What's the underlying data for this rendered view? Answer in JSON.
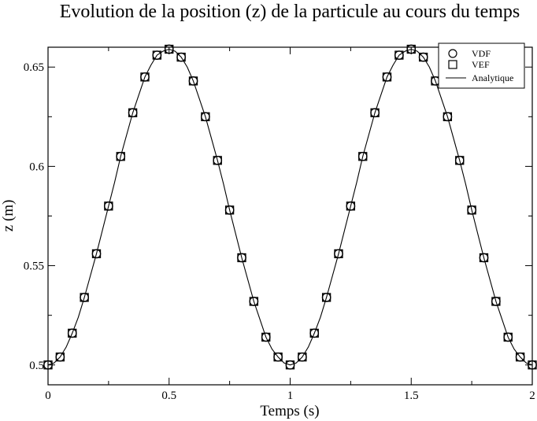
{
  "chart_data": {
    "type": "line",
    "title": "Evolution de la position (z) de la particule au cours du temps",
    "xlabel": "Temps (s)",
    "ylabel": "z (m)",
    "xlim": [
      0,
      2
    ],
    "ylim": [
      0.49,
      0.66
    ],
    "xticks": [
      0,
      0.5,
      1,
      1.5,
      2
    ],
    "xtick_labels": [
      "0",
      "0.5",
      "1",
      "1.5",
      "2"
    ],
    "yticks": [
      0.5,
      0.55,
      0.6,
      0.65
    ],
    "ytick_labels": [
      "0.5",
      "0.55",
      "0.6",
      "0.65"
    ],
    "grid": false,
    "legend_position": "top-right",
    "series": [
      {
        "name": "VDF",
        "marker": "circle",
        "x": [
          0,
          0.05,
          0.1,
          0.15,
          0.2,
          0.25,
          0.3,
          0.35,
          0.4,
          0.45,
          0.5,
          0.55,
          0.6,
          0.65,
          0.7,
          0.75,
          0.8,
          0.85,
          0.9,
          0.95,
          1,
          1.05,
          1.1,
          1.15,
          1.2,
          1.25,
          1.3,
          1.35,
          1.4,
          1.45,
          1.5,
          1.55,
          1.6,
          1.65,
          1.7,
          1.75,
          1.8,
          1.85,
          1.9,
          1.95,
          2
        ],
        "y": [
          0.5,
          0.504,
          0.516,
          0.534,
          0.556,
          0.58,
          0.605,
          0.627,
          0.645,
          0.656,
          0.659,
          0.655,
          0.643,
          0.625,
          0.603,
          0.578,
          0.554,
          0.532,
          0.514,
          0.504,
          0.5,
          0.504,
          0.516,
          0.534,
          0.556,
          0.58,
          0.605,
          0.627,
          0.645,
          0.656,
          0.659,
          0.655,
          0.643,
          0.625,
          0.603,
          0.578,
          0.554,
          0.532,
          0.514,
          0.504,
          0.5
        ]
      },
      {
        "name": "VEF",
        "marker": "square",
        "x": [
          0,
          0.05,
          0.1,
          0.15,
          0.2,
          0.25,
          0.3,
          0.35,
          0.4,
          0.45,
          0.5,
          0.55,
          0.6,
          0.65,
          0.7,
          0.75,
          0.8,
          0.85,
          0.9,
          0.95,
          1,
          1.05,
          1.1,
          1.15,
          1.2,
          1.25,
          1.3,
          1.35,
          1.4,
          1.45,
          1.5,
          1.55,
          1.6,
          1.65,
          1.7,
          1.75,
          1.8,
          1.85,
          1.9,
          1.95,
          2
        ],
        "y": [
          0.5,
          0.504,
          0.516,
          0.534,
          0.556,
          0.58,
          0.605,
          0.627,
          0.645,
          0.656,
          0.659,
          0.655,
          0.643,
          0.625,
          0.603,
          0.578,
          0.554,
          0.532,
          0.514,
          0.504,
          0.5,
          0.504,
          0.516,
          0.534,
          0.556,
          0.58,
          0.605,
          0.627,
          0.645,
          0.656,
          0.659,
          0.655,
          0.643,
          0.625,
          0.603,
          0.578,
          0.554,
          0.532,
          0.514,
          0.504,
          0.5
        ]
      },
      {
        "name": "Analytique",
        "marker": "line",
        "x": [
          0,
          0.025,
          0.05,
          0.075,
          0.1,
          0.125,
          0.15,
          0.175,
          0.2,
          0.225,
          0.25,
          0.275,
          0.3,
          0.325,
          0.35,
          0.375,
          0.4,
          0.425,
          0.45,
          0.475,
          0.5,
          0.525,
          0.55,
          0.575,
          0.6,
          0.625,
          0.65,
          0.675,
          0.7,
          0.725,
          0.75,
          0.775,
          0.8,
          0.825,
          0.85,
          0.875,
          0.9,
          0.925,
          0.95,
          0.975,
          1,
          1.025,
          1.05,
          1.075,
          1.1,
          1.125,
          1.15,
          1.175,
          1.2,
          1.225,
          1.25,
          1.275,
          1.3,
          1.325,
          1.35,
          1.375,
          1.4,
          1.425,
          1.45,
          1.475,
          1.5,
          1.525,
          1.55,
          1.575,
          1.6,
          1.625,
          1.65,
          1.675,
          1.7,
          1.725,
          1.75,
          1.775,
          1.8,
          1.825,
          1.85,
          1.875,
          1.9,
          1.925,
          1.95,
          1.975,
          2
        ],
        "y": [
          0.5,
          0.501,
          0.504,
          0.509,
          0.516,
          0.524,
          0.534,
          0.545,
          0.556,
          0.568,
          0.58,
          0.592,
          0.605,
          0.616,
          0.627,
          0.636,
          0.645,
          0.651,
          0.656,
          0.658,
          0.659,
          0.658,
          0.655,
          0.65,
          0.643,
          0.634,
          0.625,
          0.614,
          0.603,
          0.591,
          0.578,
          0.566,
          0.554,
          0.543,
          0.532,
          0.523,
          0.514,
          0.508,
          0.504,
          0.501,
          0.5,
          0.501,
          0.504,
          0.509,
          0.516,
          0.524,
          0.534,
          0.545,
          0.556,
          0.568,
          0.58,
          0.592,
          0.605,
          0.616,
          0.627,
          0.636,
          0.645,
          0.651,
          0.656,
          0.658,
          0.659,
          0.658,
          0.655,
          0.65,
          0.643,
          0.634,
          0.625,
          0.614,
          0.603,
          0.591,
          0.578,
          0.566,
          0.554,
          0.543,
          0.532,
          0.523,
          0.514,
          0.508,
          0.504,
          0.501,
          0.5
        ]
      }
    ]
  }
}
